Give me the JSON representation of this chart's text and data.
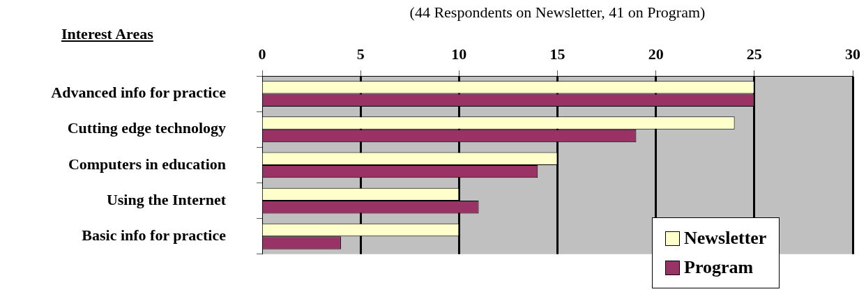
{
  "chart_data": {
    "type": "bar",
    "orientation": "horizontal",
    "xlabel": "(44 Respondents on Newsletter, 41 on Program)",
    "ylabel": "Interest Areas",
    "categories": [
      "Advanced info for practice",
      "Cutting edge technology",
      "Computers in education",
      "Using the Internet",
      "Basic info for practice"
    ],
    "series": [
      {
        "name": "Newsletter",
        "color": "#ffffcc",
        "values": [
          25,
          24,
          15,
          10,
          10
        ]
      },
      {
        "name": "Program",
        "color": "#993366",
        "values": [
          25,
          19,
          14,
          11,
          4
        ]
      }
    ],
    "xlim": [
      0,
      30
    ],
    "xticks": [
      0,
      5,
      10,
      15,
      20,
      25,
      30
    ],
    "grid": "x",
    "legend": "bottom right"
  }
}
